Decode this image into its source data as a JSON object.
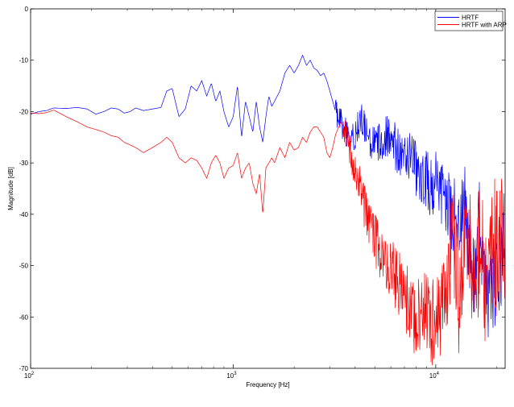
{
  "chart_data": {
    "type": "line",
    "title": "",
    "xlabel": "Frequency [Hz]",
    "ylabel": "Magnitude [dB]",
    "x_scale": "log",
    "xlim": [
      100,
      22000
    ],
    "ylim": [
      -70,
      0
    ],
    "grid": false,
    "legend_position": "top-right",
    "x_ticks": [
      {
        "value": 100,
        "base": "10",
        "exp": "2"
      },
      {
        "value": 1000,
        "base": "10",
        "exp": "3"
      },
      {
        "value": 10000,
        "base": "10",
        "exp": "4"
      }
    ],
    "y_ticks": [
      {
        "value": 0,
        "label": "0"
      },
      {
        "value": -10,
        "label": "-10"
      },
      {
        "value": -20,
        "label": "-20"
      },
      {
        "value": -30,
        "label": "-30"
      },
      {
        "value": -40,
        "label": "-40"
      },
      {
        "value": -50,
        "label": "-50"
      },
      {
        "value": -60,
        "label": "-60"
      },
      {
        "value": -70,
        "label": "-70"
      }
    ],
    "series": [
      {
        "name": "HRTF",
        "color": "#0000ff",
        "noise_from": 3200,
        "noise_amp": [
          2.5,
          9
        ],
        "x": [
          100,
          110,
          120,
          130,
          150,
          170,
          190,
          210,
          230,
          250,
          270,
          290,
          310,
          330,
          360,
          400,
          440,
          470,
          500,
          540,
          580,
          620,
          660,
          700,
          740,
          780,
          820,
          860,
          900,
          950,
          1000,
          1050,
          1100,
          1150,
          1200,
          1250,
          1300,
          1350,
          1400,
          1450,
          1500,
          1550,
          1600,
          1700,
          1800,
          1900,
          2000,
          2100,
          2200,
          2300,
          2400,
          2500,
          2600,
          2700,
          2800,
          2900,
          3000,
          3100,
          3200,
          3400,
          3600,
          3800,
          4000,
          4300,
          4600,
          5000,
          5500,
          6000,
          6500,
          7000,
          7500,
          8000,
          8500,
          9000,
          9500,
          10000,
          10500,
          11000,
          11500,
          12000,
          12500,
          13000,
          13500,
          14000,
          14500,
          15000,
          15500,
          16000,
          16500,
          17000,
          17500,
          18000,
          18500,
          19000,
          19500,
          20000,
          20500,
          21000,
          21500,
          22000
        ],
        "y": [
          -20.5,
          -20,
          -19.8,
          -19.3,
          -19.4,
          -19.2,
          -19.5,
          -20.5,
          -20,
          -19.3,
          -19.5,
          -20.3,
          -20,
          -19.3,
          -19.8,
          -19.5,
          -19.2,
          -16,
          -15.5,
          -21,
          -19.5,
          -15,
          -16,
          -14,
          -17,
          -14.5,
          -18,
          -16,
          -20,
          -23,
          -21,
          -15,
          -25,
          -18,
          -21,
          -24,
          -18,
          -23,
          -26,
          -21,
          -17,
          -19,
          -18,
          -16,
          -12.5,
          -11,
          -12.5,
          -11,
          -9,
          -11,
          -10,
          -11.5,
          -12,
          -13,
          -12.5,
          -14,
          -16,
          -18,
          -20,
          -22,
          -24,
          -26,
          -24,
          -22,
          -25,
          -27,
          -25,
          -24,
          -28,
          -30,
          -27,
          -32,
          -34,
          -33,
          -35,
          -34,
          -37,
          -36,
          -38,
          -42,
          -38,
          -43,
          -40,
          -37,
          -47,
          -50,
          -52,
          -49,
          -38,
          -50,
          -55,
          -57,
          -53,
          -55,
          -55,
          -54,
          -52,
          -50,
          -48,
          -46
        ]
      },
      {
        "name": "HRTF with ARP",
        "color": "#ff0000",
        "noise_from": 3500,
        "noise_amp": [
          3,
          14
        ],
        "x": [
          100,
          110,
          120,
          130,
          150,
          170,
          190,
          210,
          230,
          250,
          270,
          290,
          310,
          330,
          360,
          400,
          440,
          470,
          500,
          540,
          580,
          620,
          660,
          700,
          740,
          780,
          820,
          860,
          900,
          950,
          1000,
          1050,
          1100,
          1150,
          1200,
          1250,
          1300,
          1350,
          1400,
          1450,
          1500,
          1550,
          1600,
          1700,
          1800,
          1900,
          2000,
          2100,
          2200,
          2300,
          2400,
          2500,
          2600,
          2700,
          2800,
          2900,
          3000,
          3100,
          3200,
          3400,
          3600,
          3800,
          4000,
          4300,
          4600,
          5000,
          5500,
          6000,
          6500,
          7000,
          7500,
          8000,
          8500,
          9000,
          9500,
          10000,
          10500,
          11000,
          11500,
          12000,
          12500,
          13000,
          13500,
          14000,
          14500,
          15000,
          15500,
          16000,
          16500,
          17000,
          17500,
          18000,
          18500,
          19000,
          19500,
          20000,
          20500,
          21000,
          21500,
          22000
        ],
        "y": [
          -20.3,
          -20.4,
          -20.2,
          -19.7,
          -21,
          -22,
          -23,
          -23.5,
          -24,
          -24.7,
          -25,
          -26,
          -26.5,
          -27,
          -28,
          -27,
          -26,
          -25,
          -26,
          -29,
          -30,
          -29,
          -29.5,
          -31,
          -33,
          -30,
          -28.5,
          -30,
          -33,
          -31,
          -30.5,
          -28,
          -33,
          -31,
          -30,
          -34,
          -36,
          -32,
          -40,
          -31,
          -30,
          -29,
          -30,
          -27,
          -29,
          -26,
          -27.5,
          -27,
          -25,
          -26,
          -24,
          -23,
          -23,
          -24,
          -25,
          -28,
          -29,
          -27,
          -24.5,
          -22,
          -24,
          -28,
          -31,
          -36,
          -41,
          -45,
          -48,
          -50,
          -53,
          -56,
          -58,
          -60,
          -59,
          -60,
          -61,
          -62,
          -60,
          -56,
          -52,
          -44,
          -48,
          -58,
          -50,
          -46,
          -40,
          -49,
          -56,
          -52,
          -42,
          -45,
          -54,
          -57,
          -50,
          -47,
          -45,
          -48,
          -46,
          -45,
          -46,
          -45
        ]
      }
    ]
  }
}
